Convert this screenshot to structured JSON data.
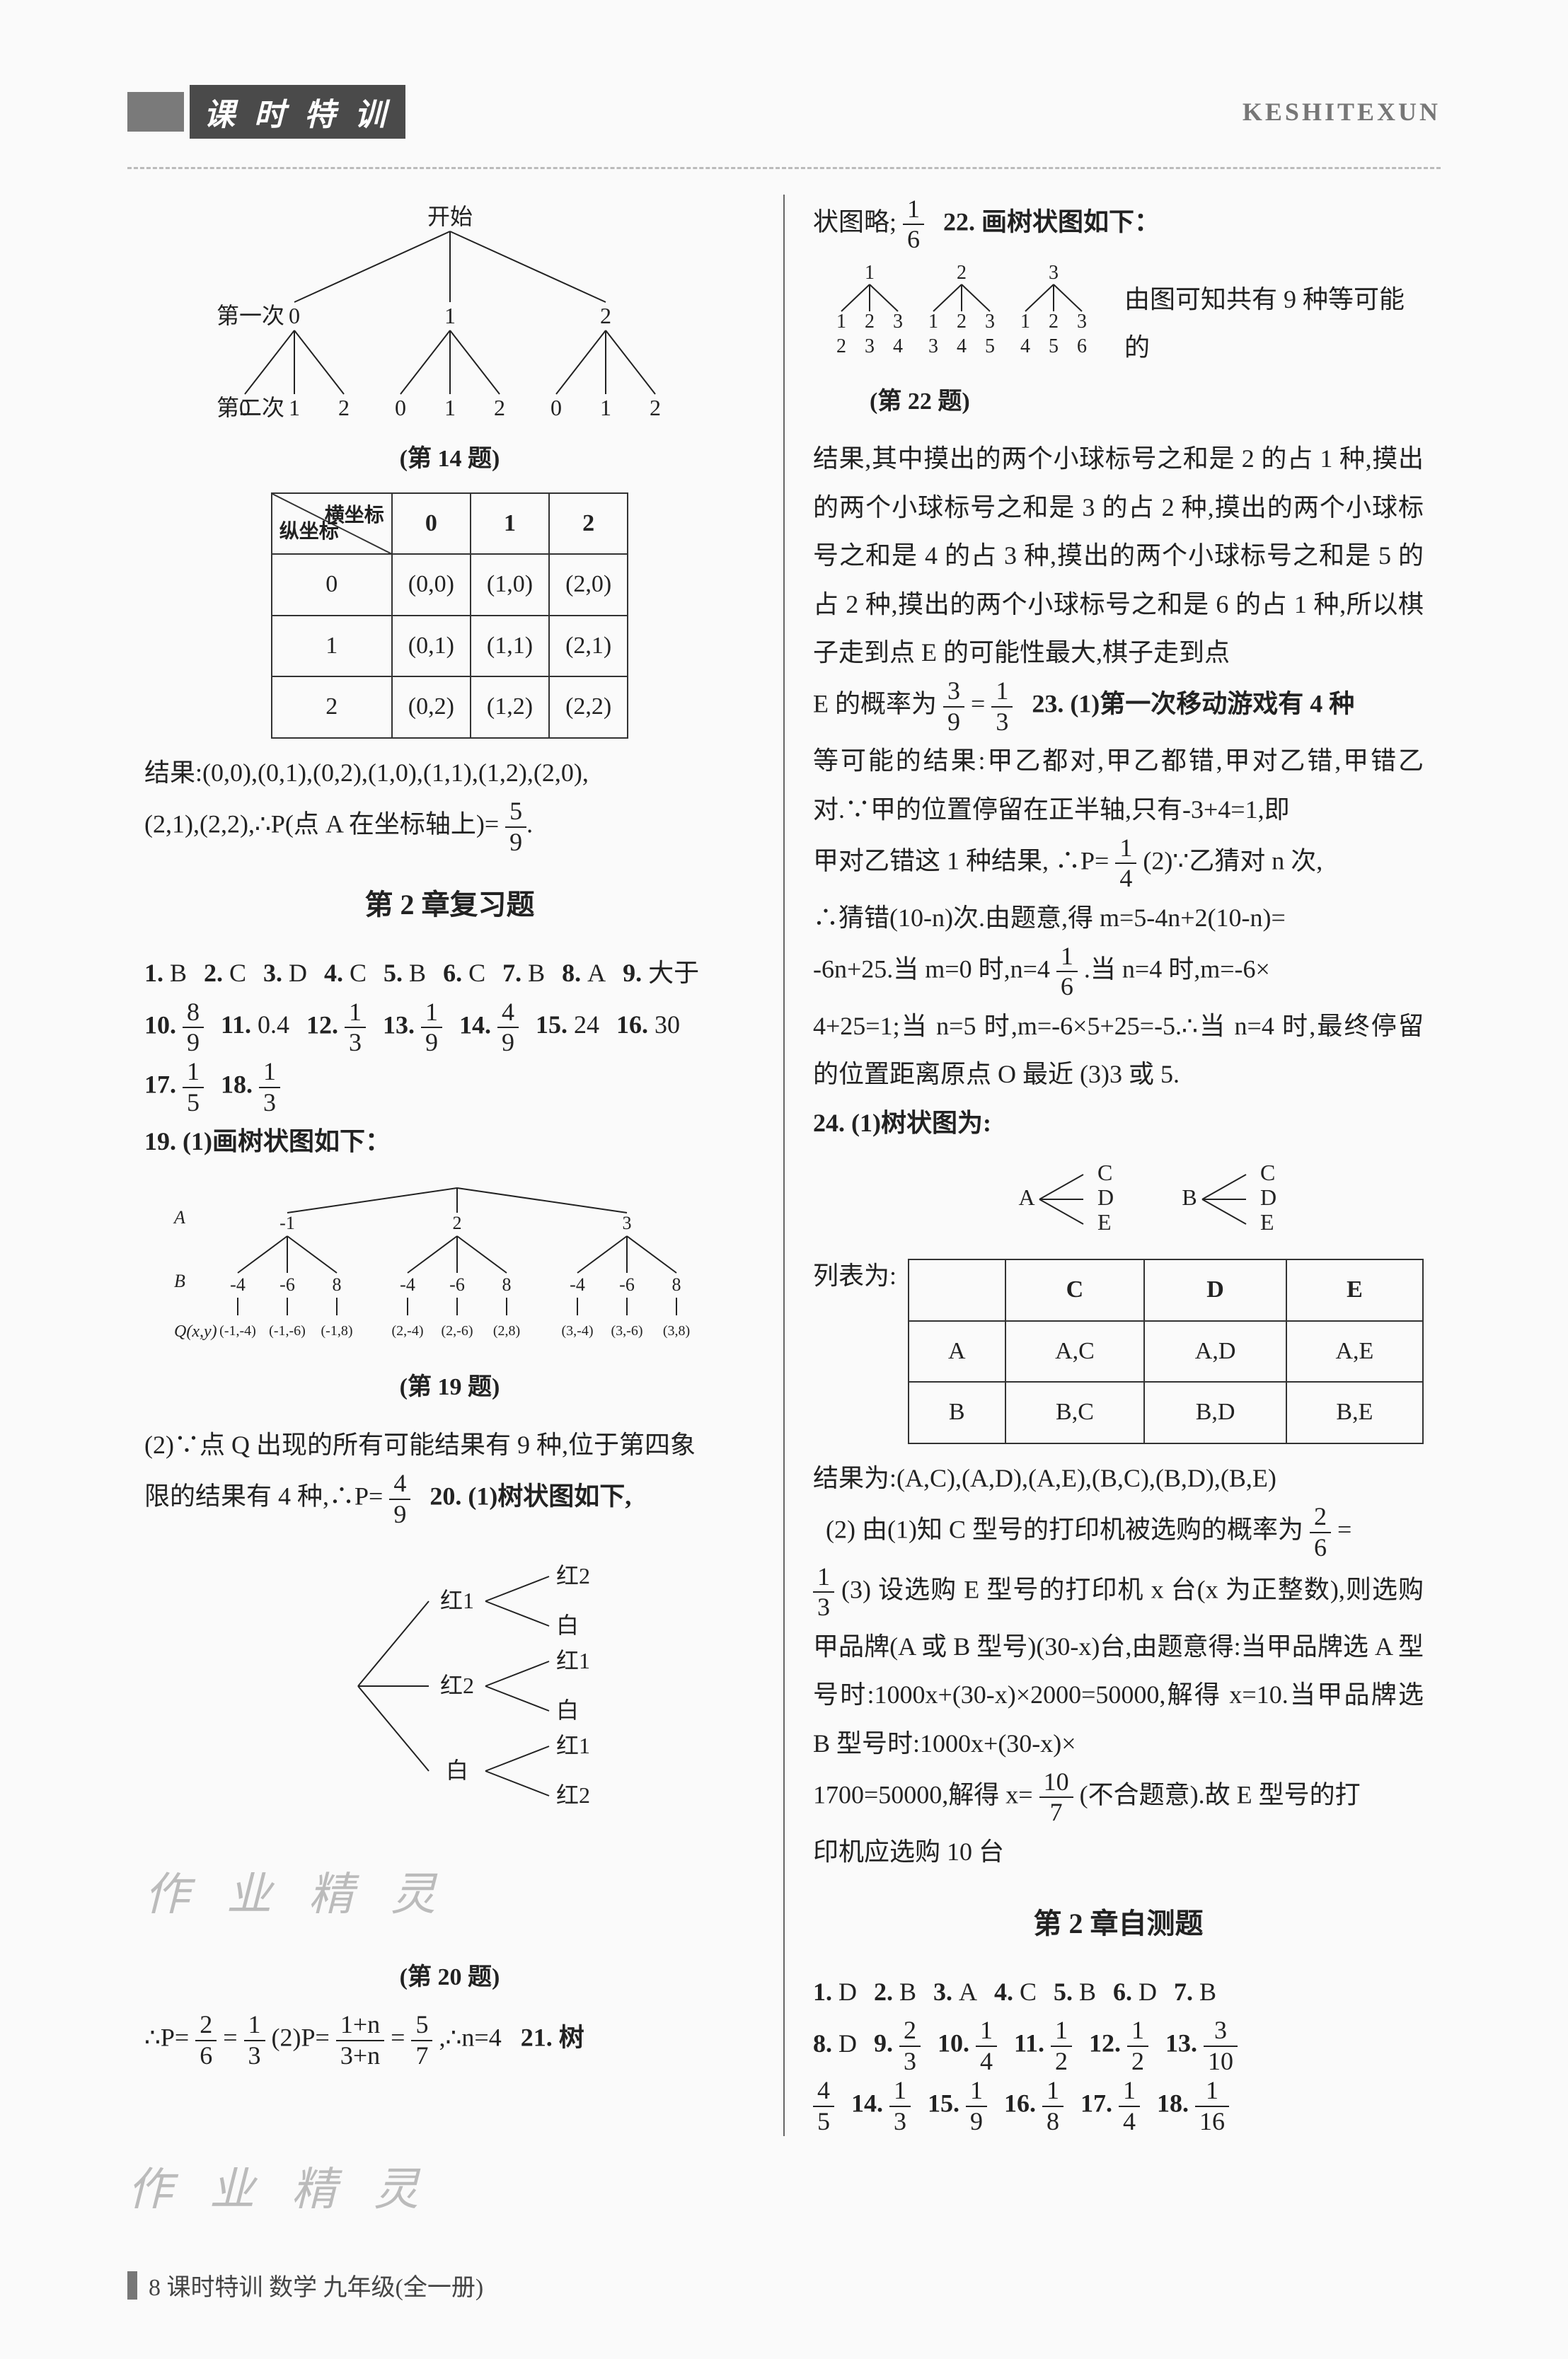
{
  "header": {
    "title": "课 时 特 训",
    "pinyin": "KESHITEXUN"
  },
  "footer": {
    "text": "8  课时特训   数学   九年级(全一册)"
  },
  "q14": {
    "tree_caption": "(第 14 题)",
    "start": "开始",
    "row_labels": [
      "第一次",
      "第二次"
    ],
    "level1": [
      "0",
      "1",
      "2"
    ],
    "level2": [
      "0",
      "1",
      "2",
      "0",
      "1",
      "2",
      "0",
      "1",
      "2"
    ],
    "table": {
      "diag_top": "横坐标",
      "diag_left": "纵坐标",
      "col_headers": [
        "0",
        "1",
        "2"
      ],
      "rows": [
        {
          "h": "0",
          "cells": [
            "(0,0)",
            "(1,0)",
            "(2,0)"
          ]
        },
        {
          "h": "1",
          "cells": [
            "(0,1)",
            "(1,1)",
            "(2,1)"
          ]
        },
        {
          "h": "2",
          "cells": [
            "(0,2)",
            "(1,2)",
            "(2,2)"
          ]
        }
      ]
    },
    "result_line": "结果:(0,0),(0,1),(0,2),(1,0),(1,1),(1,2),(2,0),",
    "result_line2_prefix": "(2,1),(2,2),∴P(点 A 在坐标轴上)=",
    "result_frac": {
      "n": "5",
      "d": "9"
    },
    "period": "."
  },
  "ch2review": {
    "title": "第 2 章复习题",
    "items": [
      {
        "n": "1.",
        "v": "B"
      },
      {
        "n": "2.",
        "v": "C"
      },
      {
        "n": "3.",
        "v": "D"
      },
      {
        "n": "4.",
        "v": "C"
      },
      {
        "n": "5.",
        "v": "B"
      },
      {
        "n": "6.",
        "v": "C"
      },
      {
        "n": "7.",
        "v": "B"
      },
      {
        "n": "8.",
        "v": "A"
      },
      {
        "n": "9.",
        "v": "大于"
      },
      {
        "n": "10.",
        "frac": {
          "n": "8",
          "d": "9"
        }
      },
      {
        "n": "11.",
        "v": "0.4"
      },
      {
        "n": "12.",
        "frac": {
          "n": "1",
          "d": "3"
        }
      },
      {
        "n": "13.",
        "frac": {
          "n": "1",
          "d": "9"
        }
      },
      {
        "n": "14.",
        "frac": {
          "n": "4",
          "d": "9"
        }
      },
      {
        "n": "15.",
        "v": "24"
      },
      {
        "n": "16.",
        "v": "30"
      },
      {
        "n": "17.",
        "frac": {
          "n": "1",
          "d": "5"
        }
      },
      {
        "n": "18.",
        "frac": {
          "n": "1",
          "d": "3"
        }
      }
    ],
    "q19_intro": "19.  (1)画树状图如下：",
    "q19_caption": "(第 19 题)",
    "q19_rowA": "A",
    "q19_rowB": "B",
    "q19_Q": "Q(x,y)",
    "q19_top": [
      "-1",
      "2",
      "3"
    ],
    "q19_mid": [
      "-4",
      "-6",
      "8",
      "-4",
      "-6",
      "8",
      "-4",
      "-6",
      "8"
    ],
    "q19_out": [
      "(-1,-4)",
      "(-1,-6)",
      "(-1,8)",
      "(2,-4)",
      "(2,-6)",
      "(2,8)",
      "(3,-4)",
      "(3,-6)",
      "(3,8)"
    ],
    "q19_part2a": "(2)∵点 Q 出现的所有可能结果有 9 种,位于第四象",
    "q19_part2b_prefix": "限的结果有 4 种,∴P=",
    "q19_part2b_frac": {
      "n": "4",
      "d": "9"
    },
    "q20_intro": "20.  (1)树状图如下,",
    "q20_caption": "(第 20 题)",
    "q20_root_children": [
      "红1",
      "红2",
      "白"
    ],
    "q20_leaves": [
      [
        "红2",
        "白"
      ],
      [
        "红1",
        "白"
      ],
      [
        "红1",
        "红2"
      ]
    ],
    "q20_line_prefix": "∴P=",
    "q20_frac1": {
      "n": "2",
      "d": "6"
    },
    "q20_eq": "=",
    "q20_frac2": {
      "n": "1",
      "d": "3"
    },
    "q20_part2": "   (2)P=",
    "q20_frac3": {
      "n": "1+n",
      "d": "3+n"
    },
    "q20_eq2": "=",
    "q20_frac4": {
      "n": "5",
      "d": "7"
    },
    "q20_tail": ",∴n=4",
    "q21": "21.  树"
  },
  "rightcol": {
    "line1_prefix": "状图略;",
    "line1_frac": {
      "n": "1",
      "d": "6"
    },
    "q22_intro": "22.  画树状图如下：",
    "q22_caption": "(第 22 题)",
    "q22_top": [
      "1",
      "2",
      "3"
    ],
    "q22_mid": [
      [
        "1",
        "2",
        "3"
      ],
      [
        "1",
        "2",
        "3"
      ],
      [
        "1",
        "2",
        "3"
      ]
    ],
    "q22_sum": [
      [
        "2",
        "3",
        "4"
      ],
      [
        "3",
        "4",
        "5"
      ],
      [
        "4",
        "5",
        "6"
      ]
    ],
    "q22_tail": "由图可知共有 9 种等可能的",
    "para1": "结果,其中摸出的两个小球标号之和是 2 的占 1 种,摸出的两个小球标号之和是 3 的占 2 种,摸出的两个小球标号之和是 4 的占 3 种,摸出的两个小球标号之和是 5 的占 2 种,摸出的两个小球标号之和是 6 的占 1 种,所以棋子走到点 E 的可能性最大,棋子走到点",
    "para1_end_prefix": "E 的概率为",
    "para1_frac1": {
      "n": "3",
      "d": "9"
    },
    "para1_eq": "=",
    "para1_frac2": {
      "n": "1",
      "d": "3"
    },
    "q23_intro": "23.  (1)第一次移动游戏有 4 种",
    "q23_body1": "等可能的结果:甲乙都对,甲乙都错,甲对乙错,甲错乙对.∵甲的位置停留在正半轴,只有-3+4=1,即",
    "q23_body2_prefix": "甲对乙错这 1 种结果, ∴P=",
    "q23_frac1": {
      "n": "1",
      "d": "4"
    },
    "q23_body3": "   (2)∵乙猜对 n 次,",
    "q23_body4": "∴猜错(10-n)次.由题意,得 m=5-4n+2(10-n)=",
    "q23_body5_prefix": "-6n+25.当 m=0 时,n=4",
    "q23_frac2": {
      "n": "1",
      "d": "6"
    },
    "q23_body5_suffix": ".当 n=4 时,m=-6×",
    "q23_body6": "4+25=1;当 n=5 时,m=-6×5+25=-5.∴当 n=4 时,最终停留的位置距离原点 O 最近   (3)3 或 5.",
    "q24_intro": "24.  (1)树状图为:",
    "q24_tree_roots": [
      "A",
      "B"
    ],
    "q24_tree_leaves": [
      "C",
      "D",
      "E"
    ],
    "q24_table_intro": "列表为:",
    "q24_table": {
      "cols": [
        "",
        "C",
        "D",
        "E"
      ],
      "rows": [
        [
          "A",
          "A,C",
          "A,D",
          "A,E"
        ],
        [
          "B",
          "B,C",
          "B,D",
          "B,E"
        ]
      ]
    },
    "q24_result": "结果为:(A,C),(A,D),(A,E),(B,C),(B,D),(B,E)",
    "q24_p2_prefix": "(2) 由(1)知 C 型号的打印机被选购的概率为",
    "q24_p2_frac1": {
      "n": "2",
      "d": "6"
    },
    "q24_p2_eq": "=",
    "q24_p2_frac2": {
      "n": "1",
      "d": "3"
    },
    "q24_p3": "   (3) 设选购 E 型号的打印机 x 台(x 为正整数),则选购甲品牌(A 或 B 型号)(30-x)台,由题意得:当甲品牌选 A 型号时:1000x+(30-x)×2000=50000,解得 x=10.当甲品牌选 B 型号时:1000x+(30-x)×",
    "q24_p3b_prefix": "1700=50000,解得 x=",
    "q24_p3b_frac": {
      "n": "10",
      "d": "7"
    },
    "q24_p3b_suffix": "(不合题意).故 E 型号的打",
    "q24_p3c": "印机应选购 10 台"
  },
  "ch2test": {
    "title": "第 2 章自测题",
    "line1": [
      {
        "n": "1.",
        "v": "D"
      },
      {
        "n": "2.",
        "v": "B"
      },
      {
        "n": "3.",
        "v": "A"
      },
      {
        "n": "4.",
        "v": "C"
      },
      {
        "n": "5.",
        "v": "B"
      },
      {
        "n": "6.",
        "v": "D"
      },
      {
        "n": "7.",
        "v": "B"
      }
    ],
    "line2": [
      {
        "n": "8.",
        "v": "D"
      },
      {
        "n": "9.",
        "frac": {
          "n": "2",
          "d": "3"
        }
      },
      {
        "n": "10.",
        "frac": {
          "n": "1",
          "d": "4"
        }
      },
      {
        "n": "11.",
        "frac": {
          "n": "1",
          "d": "2"
        }
      },
      {
        "n": "12.",
        "frac": {
          "n": "1",
          "d": "2"
        }
      },
      {
        "n": "13.",
        "frac": {
          "n": "3",
          "d": "10"
        }
      }
    ],
    "line3": [
      {
        "frac": {
          "n": "4",
          "d": "5"
        }
      },
      {
        "n": "14.",
        "frac": {
          "n": "1",
          "d": "3"
        }
      },
      {
        "n": "15.",
        "frac": {
          "n": "1",
          "d": "9"
        }
      },
      {
        "n": "16.",
        "frac": {
          "n": "1",
          "d": "8"
        }
      },
      {
        "n": "17.",
        "frac": {
          "n": "1",
          "d": "4"
        }
      },
      {
        "n": "18.",
        "frac": {
          "n": "1",
          "d": "16"
        }
      }
    ]
  },
  "watermark": "作 业 精 灵",
  "colors": {
    "text": "#222222",
    "header_bg": "#4a4a4a",
    "divider": "#666666",
    "table_border": "#333333"
  }
}
